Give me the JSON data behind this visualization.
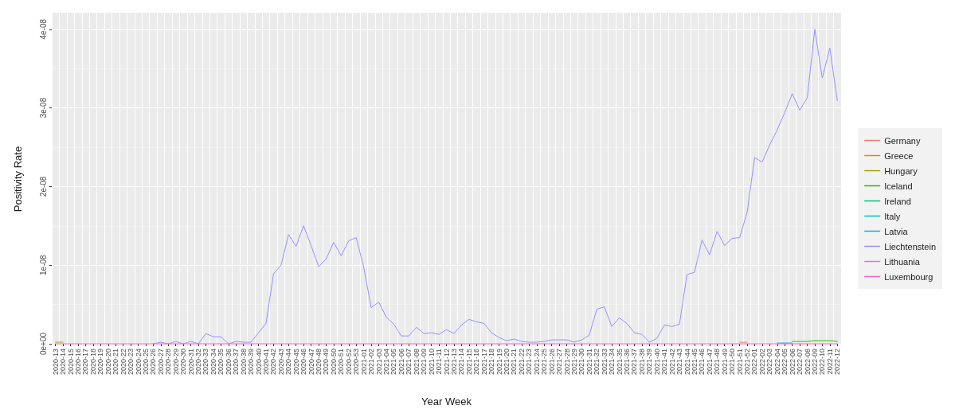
{
  "chart_data": {
    "type": "line",
    "xlabel": "Year Week",
    "ylabel": "Positivity Rate",
    "categories": [
      "2020-13",
      "2020-14",
      "2020-15",
      "2020-16",
      "2020-17",
      "2020-18",
      "2020-19",
      "2020-20",
      "2020-21",
      "2020-22",
      "2020-23",
      "2020-24",
      "2020-25",
      "2020-26",
      "2020-27",
      "2020-28",
      "2020-29",
      "2020-30",
      "2020-31",
      "2020-32",
      "2020-33",
      "2020-34",
      "2020-35",
      "2020-36",
      "2020-37",
      "2020-38",
      "2020-39",
      "2020-40",
      "2020-41",
      "2020-42",
      "2020-43",
      "2020-44",
      "2020-45",
      "2020-46",
      "2020-47",
      "2020-48",
      "2020-49",
      "2020-50",
      "2020-51",
      "2020-52",
      "2020-53",
      "2021-01",
      "2021-02",
      "2021-03",
      "2021-04",
      "2021-05",
      "2021-06",
      "2021-07",
      "2021-08",
      "2021-09",
      "2021-10",
      "2021-11",
      "2021-12",
      "2021-13",
      "2021-14",
      "2021-15",
      "2021-16",
      "2021-17",
      "2021-18",
      "2021-19",
      "2021-20",
      "2021-21",
      "2021-22",
      "2021-23",
      "2021-24",
      "2021-25",
      "2021-26",
      "2021-27",
      "2021-28",
      "2021-29",
      "2021-30",
      "2021-31",
      "2021-32",
      "2021-33",
      "2021-34",
      "2021-35",
      "2021-36",
      "2021-37",
      "2021-38",
      "2021-39",
      "2021-40",
      "2021-41",
      "2021-42",
      "2021-43",
      "2021-44",
      "2021-45",
      "2021-46",
      "2021-47",
      "2021-48",
      "2021-49",
      "2021-50",
      "2021-51",
      "2021-52",
      "2022-01",
      "2022-02",
      "2022-03",
      "2022-04",
      "2022-05",
      "2022-06",
      "2022-07",
      "2022-08",
      "2022-09",
      "2022-10",
      "2022-11",
      "2022-12"
    ],
    "ylim": [
      -2e-10,
      4.21e-08
    ],
    "yticks": [
      {
        "value": 0,
        "label": "0e+00"
      },
      {
        "value": 1e-08,
        "label": "1e-08"
      },
      {
        "value": 2e-08,
        "label": "2e-08"
      },
      {
        "value": 3e-08,
        "label": "3e-08"
      },
      {
        "value": 4e-08,
        "label": "4e-08"
      }
    ],
    "grid": true,
    "legend": "right",
    "line_style": "solid",
    "marker": "none",
    "series": [
      {
        "name": "Germany",
        "color": "#f8766d",
        "values": [
          null,
          null,
          null,
          null,
          null,
          null,
          null,
          null,
          null,
          null,
          null,
          null,
          null,
          null,
          null,
          null,
          null,
          null,
          null,
          null,
          null,
          null,
          null,
          null,
          null,
          null,
          null,
          null,
          null,
          null,
          null,
          null,
          null,
          null,
          null,
          null,
          null,
          null,
          null,
          null,
          null,
          null,
          null,
          null,
          null,
          null,
          null,
          null,
          null,
          null,
          null,
          null,
          null,
          null,
          null,
          null,
          null,
          null,
          null,
          null,
          null,
          null,
          null,
          null,
          null,
          null,
          null,
          null,
          null,
          null,
          null,
          null,
          null,
          null,
          null,
          null,
          null,
          null,
          null,
          null,
          null,
          null,
          null,
          null,
          null,
          null,
          null,
          null,
          null,
          null,
          null,
          2e-10,
          2e-10,
          null,
          null,
          null,
          null,
          null,
          null,
          null,
          null,
          null,
          null,
          null,
          null
        ]
      },
      {
        "name": "Greece",
        "color": "#d89000",
        "values": [
          null,
          null,
          null,
          null,
          null,
          null,
          null,
          null,
          null,
          null,
          null,
          null,
          null,
          null,
          null,
          null,
          null,
          null,
          null,
          null,
          null,
          null,
          null,
          null,
          null,
          null,
          null,
          null,
          null,
          null,
          null,
          null,
          null,
          null,
          null,
          null,
          null,
          null,
          null,
          null,
          null,
          null,
          null,
          null,
          null,
          null,
          null,
          null,
          null,
          null,
          null,
          null,
          null,
          null,
          null,
          null,
          null,
          null,
          null,
          null,
          null,
          null,
          null,
          null,
          null,
          null,
          null,
          null,
          null,
          null,
          null,
          null,
          null,
          null,
          null,
          null,
          null,
          null,
          null,
          null,
          null,
          null,
          null,
          null,
          null,
          null,
          null,
          null,
          null,
          null,
          null,
          null,
          null,
          null,
          null,
          null,
          null,
          null,
          null,
          null,
          null,
          null,
          null,
          null,
          null
        ]
      },
      {
        "name": "Hungary",
        "color": "#a3a500",
        "values": [
          2e-10,
          2e-10,
          null,
          null,
          null,
          null,
          null,
          null,
          null,
          null,
          null,
          null,
          null,
          null,
          null,
          null,
          null,
          null,
          null,
          null,
          null,
          null,
          null,
          null,
          null,
          null,
          null,
          null,
          null,
          null,
          null,
          null,
          null,
          null,
          null,
          null,
          null,
          null,
          null,
          null,
          null,
          null,
          null,
          null,
          null,
          null,
          null,
          null,
          null,
          null,
          null,
          null,
          null,
          null,
          null,
          null,
          null,
          null,
          null,
          null,
          null,
          null,
          null,
          null,
          null,
          null,
          null,
          null,
          null,
          null,
          null,
          null,
          null,
          null,
          null,
          null,
          null,
          null,
          null,
          null,
          null,
          null,
          null,
          null,
          null,
          null,
          null,
          null,
          null,
          null,
          null,
          null,
          null,
          null,
          null,
          null,
          null,
          null,
          null,
          null,
          null,
          null,
          null,
          null,
          null
        ]
      },
      {
        "name": "Iceland",
        "color": "#39b600",
        "values": [
          null,
          null,
          null,
          null,
          null,
          null,
          null,
          null,
          null,
          null,
          null,
          null,
          null,
          null,
          null,
          null,
          null,
          null,
          null,
          null,
          null,
          null,
          null,
          null,
          null,
          null,
          null,
          null,
          null,
          null,
          null,
          null,
          null,
          null,
          null,
          null,
          null,
          null,
          null,
          null,
          null,
          null,
          null,
          null,
          null,
          null,
          null,
          null,
          null,
          null,
          null,
          null,
          null,
          null,
          null,
          null,
          null,
          null,
          null,
          null,
          null,
          null,
          null,
          null,
          null,
          null,
          null,
          null,
          null,
          null,
          null,
          null,
          null,
          null,
          null,
          null,
          null,
          null,
          null,
          null,
          null,
          null,
          null,
          null,
          null,
          null,
          null,
          null,
          null,
          null,
          null,
          null,
          null,
          null,
          null,
          null,
          null,
          null,
          3e-10,
          3e-10,
          3e-10,
          4e-10,
          4e-10,
          4e-10,
          3e-10
        ]
      },
      {
        "name": "Ireland",
        "color": "#00bf7d",
        "values": [
          null,
          null,
          null,
          null,
          null,
          null,
          null,
          null,
          null,
          null,
          null,
          null,
          null,
          null,
          null,
          null,
          null,
          null,
          null,
          null,
          null,
          null,
          null,
          null,
          null,
          null,
          null,
          null,
          null,
          null,
          null,
          null,
          null,
          null,
          null,
          null,
          null,
          null,
          null,
          null,
          null,
          null,
          null,
          null,
          null,
          null,
          null,
          null,
          null,
          null,
          null,
          null,
          null,
          null,
          null,
          null,
          null,
          null,
          null,
          null,
          null,
          null,
          null,
          null,
          null,
          null,
          null,
          null,
          null,
          null,
          null,
          null,
          null,
          null,
          null,
          null,
          null,
          null,
          null,
          null,
          null,
          null,
          null,
          null,
          null,
          null,
          null,
          null,
          null,
          null,
          null,
          null,
          null,
          null,
          null,
          null,
          null,
          null,
          null,
          null,
          null,
          null,
          null,
          null,
          null
        ]
      },
      {
        "name": "Italy",
        "color": "#00bfc4",
        "values": [
          null,
          null,
          null,
          null,
          null,
          null,
          null,
          null,
          null,
          null,
          null,
          null,
          null,
          null,
          null,
          null,
          null,
          null,
          null,
          null,
          null,
          null,
          null,
          null,
          null,
          null,
          null,
          null,
          null,
          null,
          null,
          null,
          null,
          null,
          null,
          null,
          null,
          null,
          null,
          null,
          null,
          null,
          null,
          null,
          null,
          null,
          null,
          null,
          null,
          null,
          null,
          null,
          null,
          null,
          null,
          null,
          null,
          null,
          null,
          null,
          null,
          null,
          null,
          null,
          null,
          null,
          null,
          null,
          null,
          null,
          null,
          null,
          null,
          null,
          null,
          null,
          null,
          null,
          null,
          null,
          null,
          null,
          null,
          null,
          null,
          null,
          null,
          null,
          null,
          null,
          null,
          null,
          null,
          null,
          null,
          null,
          null,
          null,
          null,
          null,
          null,
          null,
          null,
          null,
          null
        ]
      },
      {
        "name": "Latvia",
        "color": "#00b0f6",
        "values": [
          null,
          null,
          null,
          null,
          null,
          null,
          null,
          null,
          null,
          null,
          null,
          null,
          null,
          null,
          null,
          null,
          null,
          null,
          null,
          null,
          null,
          null,
          null,
          null,
          null,
          null,
          null,
          null,
          null,
          null,
          null,
          null,
          null,
          null,
          null,
          null,
          null,
          null,
          null,
          null,
          null,
          null,
          null,
          null,
          null,
          null,
          null,
          null,
          null,
          null,
          null,
          null,
          null,
          null,
          null,
          null,
          null,
          null,
          null,
          null,
          null,
          null,
          null,
          null,
          null,
          null,
          null,
          null,
          null,
          null,
          null,
          null,
          null,
          null,
          null,
          null,
          null,
          null,
          null,
          null,
          null,
          null,
          null,
          null,
          null,
          null,
          null,
          null,
          null,
          null,
          null,
          null,
          null,
          null,
          null,
          null,
          1e-10,
          1e-10,
          1e-10,
          null,
          null,
          null,
          null,
          null,
          null
        ]
      },
      {
        "name": "Liechtenstein",
        "color": "#9590ff",
        "values": [
          null,
          null,
          null,
          null,
          null,
          null,
          null,
          null,
          null,
          null,
          null,
          null,
          null,
          0,
          2e-10,
          0,
          3e-10,
          0,
          3e-10,
          0,
          1.3e-09,
          9e-10,
          9e-10,
          0,
          3e-10,
          2e-10,
          2e-10,
          1.4e-09,
          2.6e-09,
          8.9e-09,
          1e-08,
          1.39e-08,
          1.24e-08,
          1.5e-08,
          1.25e-08,
          9.8e-09,
          1.08e-08,
          1.29e-08,
          1.12e-08,
          1.31e-08,
          1.35e-08,
          9.7e-09,
          4.6e-09,
          5.3e-09,
          3.4e-09,
          2.5e-09,
          1e-09,
          1e-09,
          2.1e-09,
          1.3e-09,
          1.4e-09,
          1.2e-09,
          1.8e-09,
          1.3e-09,
          2.4e-09,
          3.1e-09,
          2.8e-09,
          2.6e-09,
          1.4e-09,
          8e-10,
          4e-10,
          6e-10,
          3e-10,
          2e-10,
          2e-10,
          3e-10,
          5e-10,
          5e-10,
          5e-10,
          2e-10,
          5e-10,
          1.1e-09,
          4.4e-09,
          4.7e-09,
          2.2e-09,
          3.3e-09,
          2.6e-09,
          1.4e-09,
          1.2e-09,
          2e-10,
          7e-10,
          2.4e-09,
          2.2e-09,
          2.5e-09,
          8.8e-09,
          9.1e-09,
          1.32e-08,
          1.13e-08,
          1.43e-08,
          1.25e-08,
          1.34e-08,
          1.35e-08,
          1.67e-08,
          2.37e-08,
          2.31e-08,
          2.53e-08,
          2.72e-08,
          2.94e-08,
          3.18e-08,
          2.97e-08,
          3.13e-08,
          4e-08,
          3.38e-08,
          3.76e-08,
          3.09e-08
        ]
      },
      {
        "name": "Lithuania",
        "color": "#e76bf3",
        "values": [
          null,
          null,
          null,
          null,
          null,
          null,
          null,
          null,
          null,
          null,
          null,
          null,
          null,
          null,
          null,
          null,
          null,
          null,
          null,
          null,
          null,
          null,
          null,
          null,
          null,
          null,
          null,
          null,
          null,
          null,
          null,
          null,
          null,
          null,
          null,
          null,
          null,
          null,
          null,
          null,
          null,
          null,
          null,
          null,
          null,
          null,
          null,
          null,
          null,
          null,
          null,
          null,
          null,
          null,
          null,
          null,
          null,
          null,
          null,
          null,
          null,
          null,
          null,
          null,
          null,
          null,
          null,
          null,
          null,
          null,
          null,
          null,
          null,
          null,
          null,
          null,
          null,
          null,
          null,
          null,
          null,
          null,
          null,
          null,
          null,
          null,
          null,
          null,
          null,
          null,
          null,
          null,
          null,
          null,
          null,
          null,
          null,
          null,
          null,
          null,
          null,
          null,
          null,
          null,
          null
        ]
      },
      {
        "name": "Luxembourg",
        "color": "#ff62bc",
        "values": [
          0,
          0,
          0,
          0,
          0,
          0,
          0,
          0,
          0,
          0,
          0,
          0,
          0,
          0,
          0,
          0,
          0,
          0,
          0,
          0,
          0,
          0,
          0,
          0,
          0,
          0,
          0,
          0,
          0,
          0,
          0,
          0,
          0,
          0,
          0,
          0,
          0,
          0,
          0,
          0,
          0,
          0,
          0,
          0,
          0,
          0,
          0,
          0,
          0,
          0,
          0,
          0,
          0,
          0,
          0,
          0,
          0,
          0,
          0,
          0,
          0,
          0,
          0,
          0,
          0,
          0,
          0,
          0,
          0,
          0,
          0,
          0,
          0,
          0,
          0,
          0,
          0,
          0,
          0,
          0,
          0,
          0,
          0,
          0,
          0,
          0,
          0,
          0,
          0,
          0,
          0,
          0,
          0,
          0,
          0,
          0,
          0,
          0,
          0,
          0,
          0,
          0,
          0,
          0,
          0
        ]
      }
    ]
  }
}
